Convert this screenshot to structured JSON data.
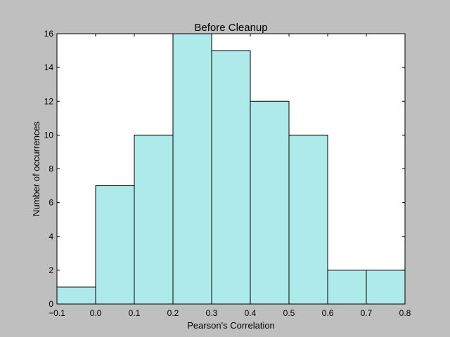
{
  "chart_data": {
    "type": "bar",
    "title": "Before Cleanup",
    "xlabel": "Pearson's Correlation",
    "ylabel": "Number of occurrences",
    "bin_edges": [
      -0.1,
      0.0,
      0.1,
      0.2,
      0.3,
      0.4,
      0.5,
      0.6,
      0.7,
      0.8
    ],
    "values": [
      1,
      7,
      10,
      16,
      15,
      12,
      10,
      2,
      2
    ],
    "xlim": [
      -0.1,
      0.8
    ],
    "ylim": [
      0,
      16
    ],
    "x_ticks": [
      "−0.1",
      "0.0",
      "0.1",
      "0.2",
      "0.3",
      "0.4",
      "0.5",
      "0.6",
      "0.7",
      "0.8"
    ],
    "y_ticks": [
      "0",
      "2",
      "4",
      "6",
      "8",
      "10",
      "12",
      "14",
      "16"
    ],
    "grid": false,
    "legend": "none",
    "colors": {
      "bar_fill": "#afeaea",
      "bar_edge": "#000000",
      "figure_bg": "#bfbfbf",
      "axes_bg": "#ffffff"
    }
  }
}
